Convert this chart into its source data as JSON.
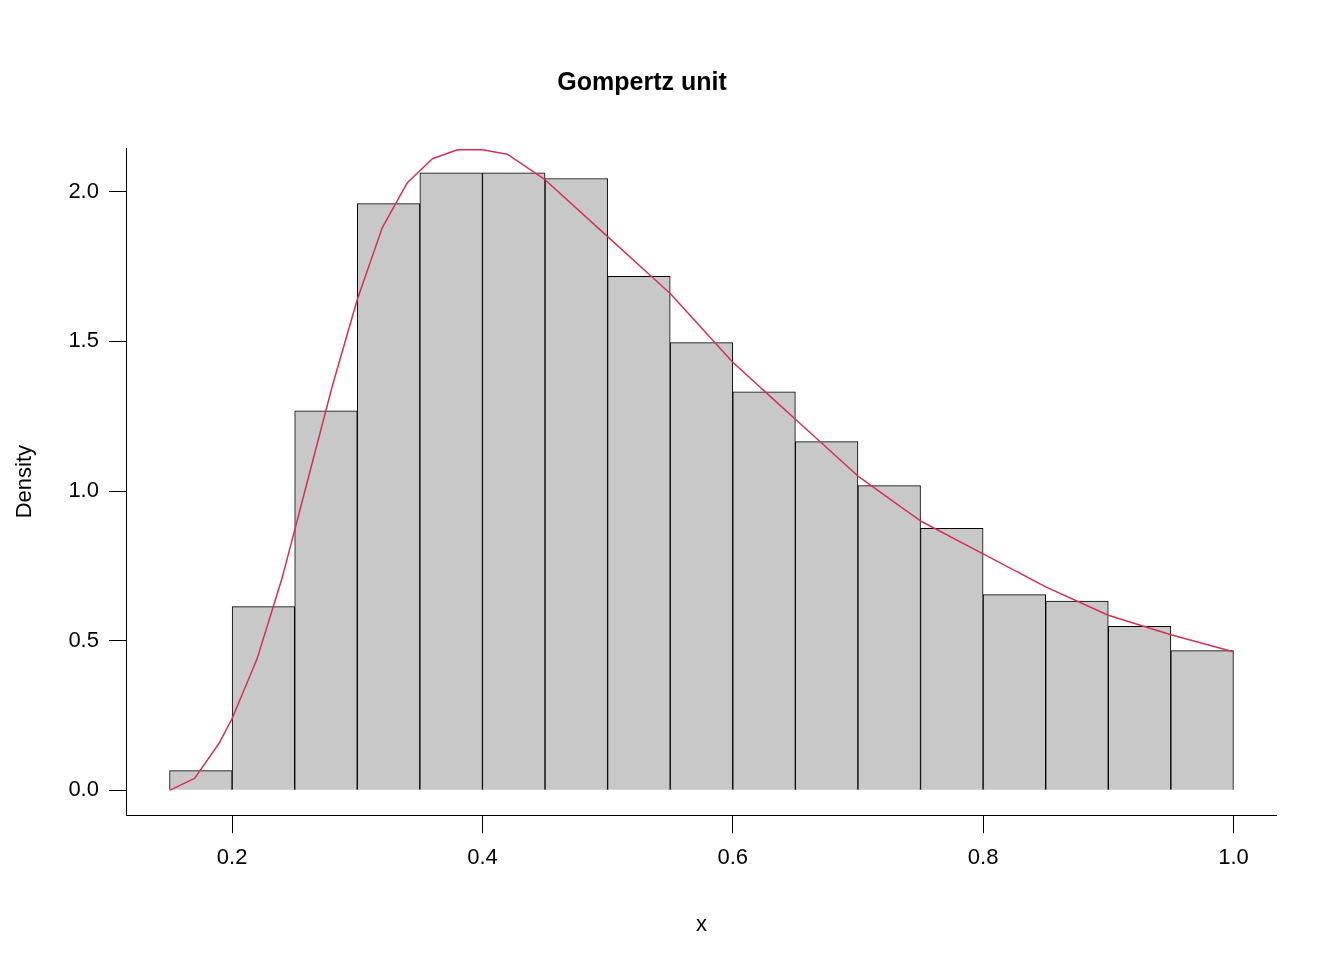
{
  "chart_data": {
    "type": "histogram",
    "title": "Gompertz unit",
    "xlabel": "x",
    "ylabel": "Density",
    "color": "#c8c8c8",
    "grid": false,
    "bins": [
      0.15,
      0.2,
      0.25,
      0.3,
      0.35,
      0.4,
      0.45,
      0.5,
      0.55,
      0.6,
      0.65,
      0.7,
      0.75,
      0.8,
      0.85,
      0.9,
      0.95,
      1.0
    ],
    "values": [
      0.066,
      0.614,
      1.268,
      1.96,
      2.063,
      2.063,
      2.044,
      1.717,
      1.496,
      1.331,
      1.165,
      1.018,
      0.875,
      0.654,
      0.632,
      0.548,
      0.467
    ],
    "xlim": [
      0.116,
      1.034
    ],
    "ylim": [
      -0.083,
      2.146
    ],
    "xticks": [
      0.2,
      0.4,
      0.6,
      0.8,
      {
        "value": 1,
        "label": "1.0"
      }
    ],
    "yticks": [
      {
        "value": 0,
        "label": "0.0"
      },
      0.5,
      {
        "value": 1,
        "label": "1.0"
      },
      1.5,
      {
        "value": 2,
        "label": "2.0"
      }
    ],
    "series": [
      {
        "type": "line",
        "color": "#d62f55",
        "x": [
          0.15,
          0.17,
          0.19,
          0.2,
          0.22,
          0.24,
          0.26,
          0.28,
          0.3,
          0.32,
          0.34,
          0.36,
          0.38,
          0.4,
          0.42,
          0.45,
          0.5,
          0.55,
          0.6,
          0.65,
          0.7,
          0.75,
          0.8,
          0.85,
          0.9,
          0.95,
          1.0
        ],
        "values": [
          0.0,
          0.04,
          0.16,
          0.24,
          0.44,
          0.71,
          1.03,
          1.35,
          1.64,
          1.88,
          2.03,
          2.11,
          2.14,
          2.14,
          2.125,
          2.04,
          1.85,
          1.66,
          1.43,
          1.24,
          1.05,
          0.9,
          0.79,
          0.68,
          0.585,
          0.52,
          0.463
        ]
      }
    ]
  }
}
